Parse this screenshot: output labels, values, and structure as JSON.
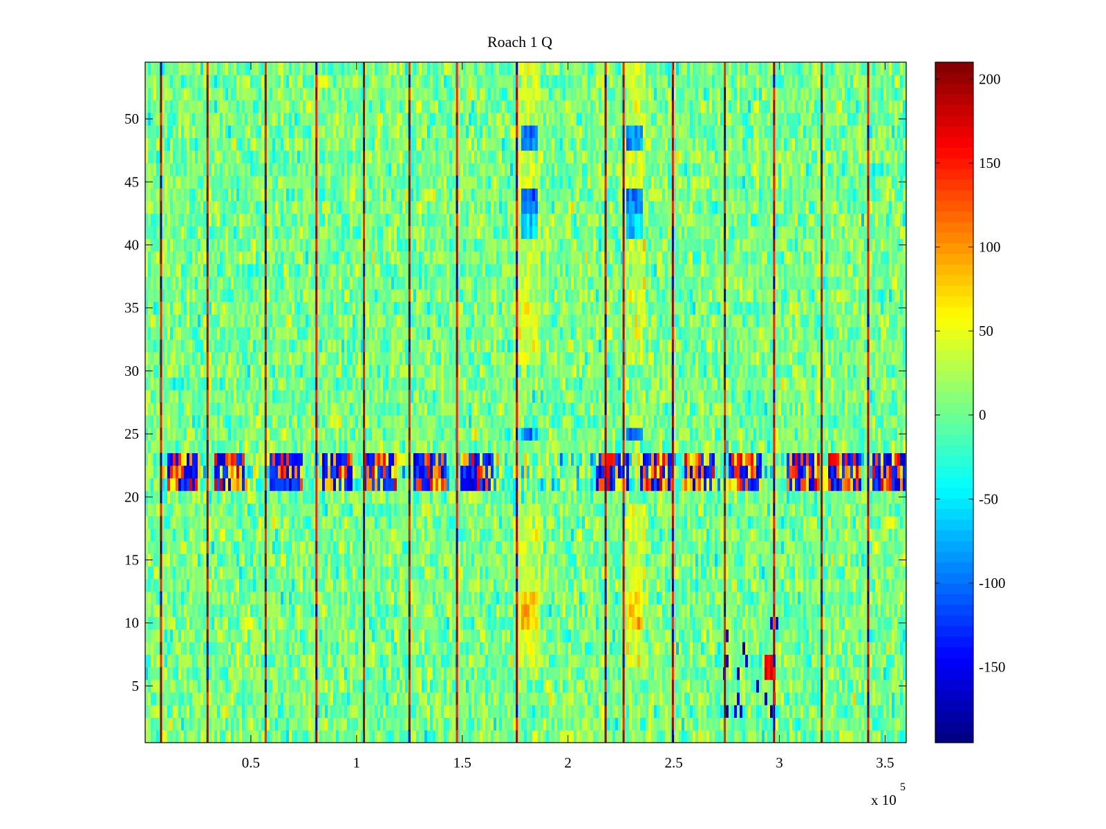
{
  "chart_data": {
    "type": "heatmap",
    "title": "Roach 1 Q",
    "xlabel": "",
    "ylabel": "",
    "x_range": [
      0,
      360000
    ],
    "y_range": [
      0.5,
      54.5
    ],
    "x_scale_label": "x 10",
    "x_scale_exponent": "5",
    "x_ticks": [
      {
        "value": 50000,
        "label": "0.5"
      },
      {
        "value": 100000,
        "label": "1"
      },
      {
        "value": 150000,
        "label": "1.5"
      },
      {
        "value": 200000,
        "label": "2"
      },
      {
        "value": 250000,
        "label": "2.5"
      },
      {
        "value": 300000,
        "label": "3"
      },
      {
        "value": 350000,
        "label": "3.5"
      }
    ],
    "y_ticks": [
      {
        "value": 5,
        "label": "5"
      },
      {
        "value": 10,
        "label": "10"
      },
      {
        "value": 15,
        "label": "15"
      },
      {
        "value": 20,
        "label": "20"
      },
      {
        "value": 25,
        "label": "25"
      },
      {
        "value": 30,
        "label": "30"
      },
      {
        "value": 35,
        "label": "35"
      },
      {
        "value": 40,
        "label": "40"
      },
      {
        "value": 45,
        "label": "45"
      },
      {
        "value": 50,
        "label": "50"
      }
    ],
    "colorbar": {
      "colormap": "jet",
      "range": [
        -195,
        210
      ],
      "ticks": [
        {
          "value": 200,
          "label": "200"
        },
        {
          "value": 150,
          "label": "150"
        },
        {
          "value": 100,
          "label": "100"
        },
        {
          "value": 50,
          "label": "50"
        },
        {
          "value": 0,
          "label": "0"
        },
        {
          "value": -50,
          "label": "-50"
        },
        {
          "value": -100,
          "label": "-100"
        },
        {
          "value": -150,
          "label": "-150"
        }
      ]
    },
    "background": {
      "mean": 5,
      "spread": 25
    },
    "vertical_stripes_x": [
      7500,
      29500,
      57000,
      81000,
      103500,
      125000,
      147500,
      175800,
      217800,
      226300,
      249600,
      274200,
      297500,
      320000,
      342000
    ],
    "noisy_row_band": {
      "y_from": 21,
      "y_to": 23.5
    },
    "noisy_row_clusters_x": [
      18000,
      40000,
      67000,
      91000,
      111000,
      135000,
      157000,
      221000,
      242000,
      262000,
      284000,
      311000,
      331000,
      352000
    ],
    "warm_bands": [
      {
        "x_from": 177000,
        "x_to": 187000,
        "y_from": 31,
        "y_to": 54.5,
        "value": 35
      },
      {
        "x_from": 227000,
        "x_to": 237000,
        "y_from": 31,
        "y_to": 54.5,
        "value": 35
      },
      {
        "x_from": 177000,
        "x_to": 187000,
        "y_from": 6.5,
        "y_to": 20,
        "value": 35
      },
      {
        "x_from": 227000,
        "x_to": 237000,
        "y_from": 6.5,
        "y_to": 20,
        "value": 35
      },
      {
        "x_from": 178000,
        "x_to": 186000,
        "y_from": 9.5,
        "y_to": 12.5,
        "value": 75
      },
      {
        "x_from": 228000,
        "x_to": 236000,
        "y_from": 9.5,
        "y_to": 12.5,
        "value": 80
      }
    ],
    "cool_patches": [
      {
        "x_from": 178000,
        "x_to": 186000,
        "y_from": 47.5,
        "y_to": 49.5,
        "value": -95
      },
      {
        "x_from": 228000,
        "x_to": 236000,
        "y_from": 47.5,
        "y_to": 49.5,
        "value": -90
      },
      {
        "x_from": 178000,
        "x_to": 186000,
        "y_from": 42.5,
        "y_to": 45,
        "value": -95
      },
      {
        "x_from": 228000,
        "x_to": 236000,
        "y_from": 42.5,
        "y_to": 45,
        "value": -90
      },
      {
        "x_from": 178000,
        "x_to": 186000,
        "y_from": 40.5,
        "y_to": 42.5,
        "value": -60
      },
      {
        "x_from": 228000,
        "x_to": 236000,
        "y_from": 40.5,
        "y_to": 42.5,
        "value": -60
      },
      {
        "x_from": 178000,
        "x_to": 186000,
        "y_from": 24.5,
        "y_to": 25.5,
        "value": -95
      },
      {
        "x_from": 228000,
        "x_to": 236000,
        "y_from": 24.5,
        "y_to": 25.5,
        "value": -90
      }
    ],
    "extreme_region": {
      "x_from": 274000,
      "x_to": 300000,
      "y_from": 3,
      "y_to": 11,
      "hot_x_from": 293000,
      "hot_x_to": 298000,
      "hot_y_from": 5.5,
      "hot_y_to": 7.5
    }
  }
}
